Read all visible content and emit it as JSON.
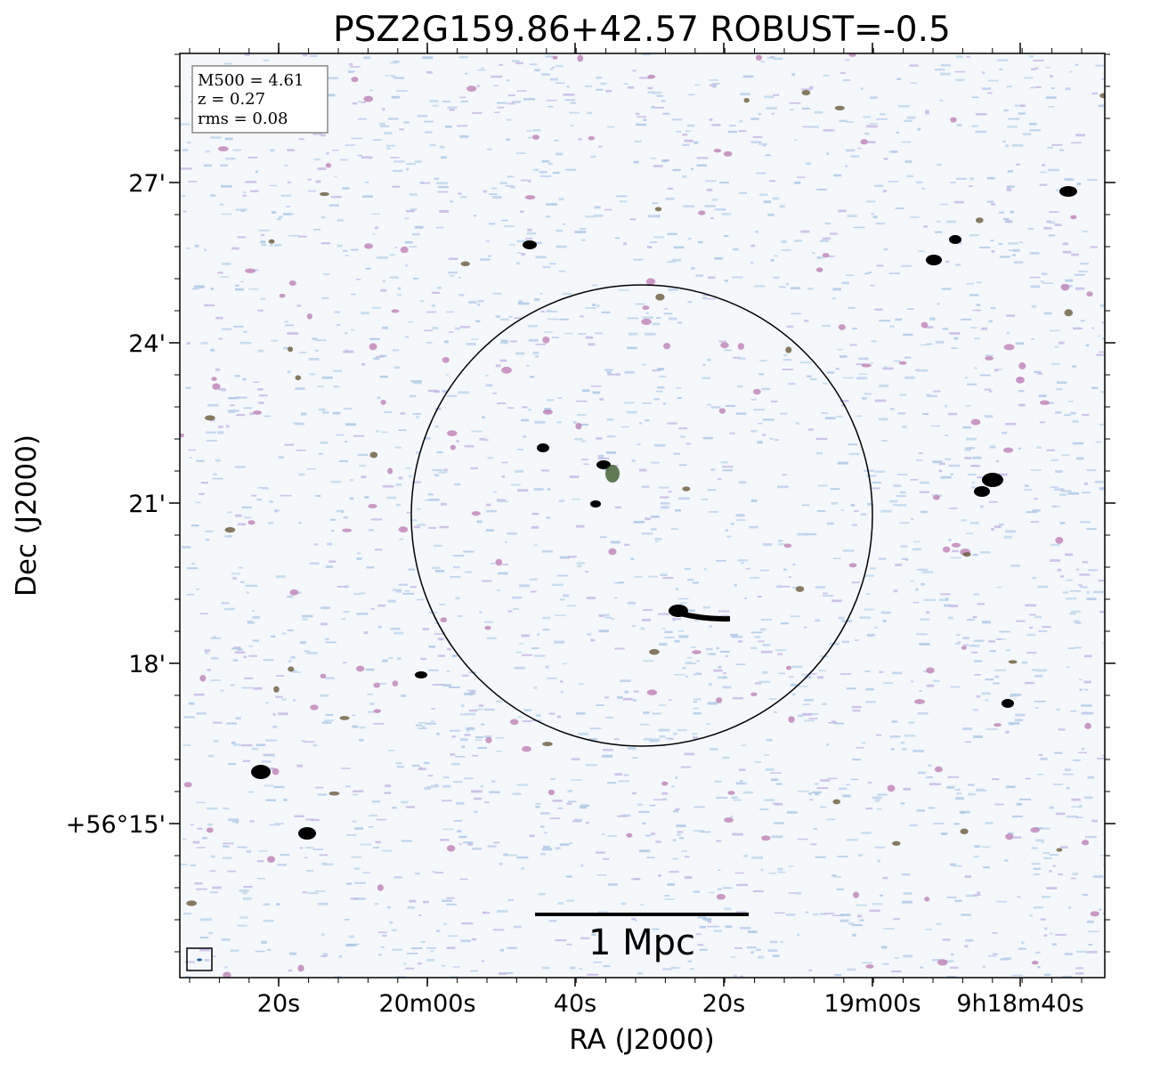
{
  "title": "PSZ2G159.86+42.57 ROBUST=-0.5",
  "info": [
    "M500 = 4.61",
    "z = 0.27",
    "rms = 0.08"
  ],
  "x_axis": {
    "label": "RA (J2000)",
    "ticks": [
      "20s",
      "20m00s",
      "40s",
      "20s",
      "19m00s",
      "9h18m40s"
    ]
  },
  "y_axis": {
    "label": "Dec (J2000)",
    "ticks": [
      "27'",
      "24'",
      "21'",
      "18'",
      "+56°15'"
    ]
  },
  "scale_bar": "1 Mpc"
}
